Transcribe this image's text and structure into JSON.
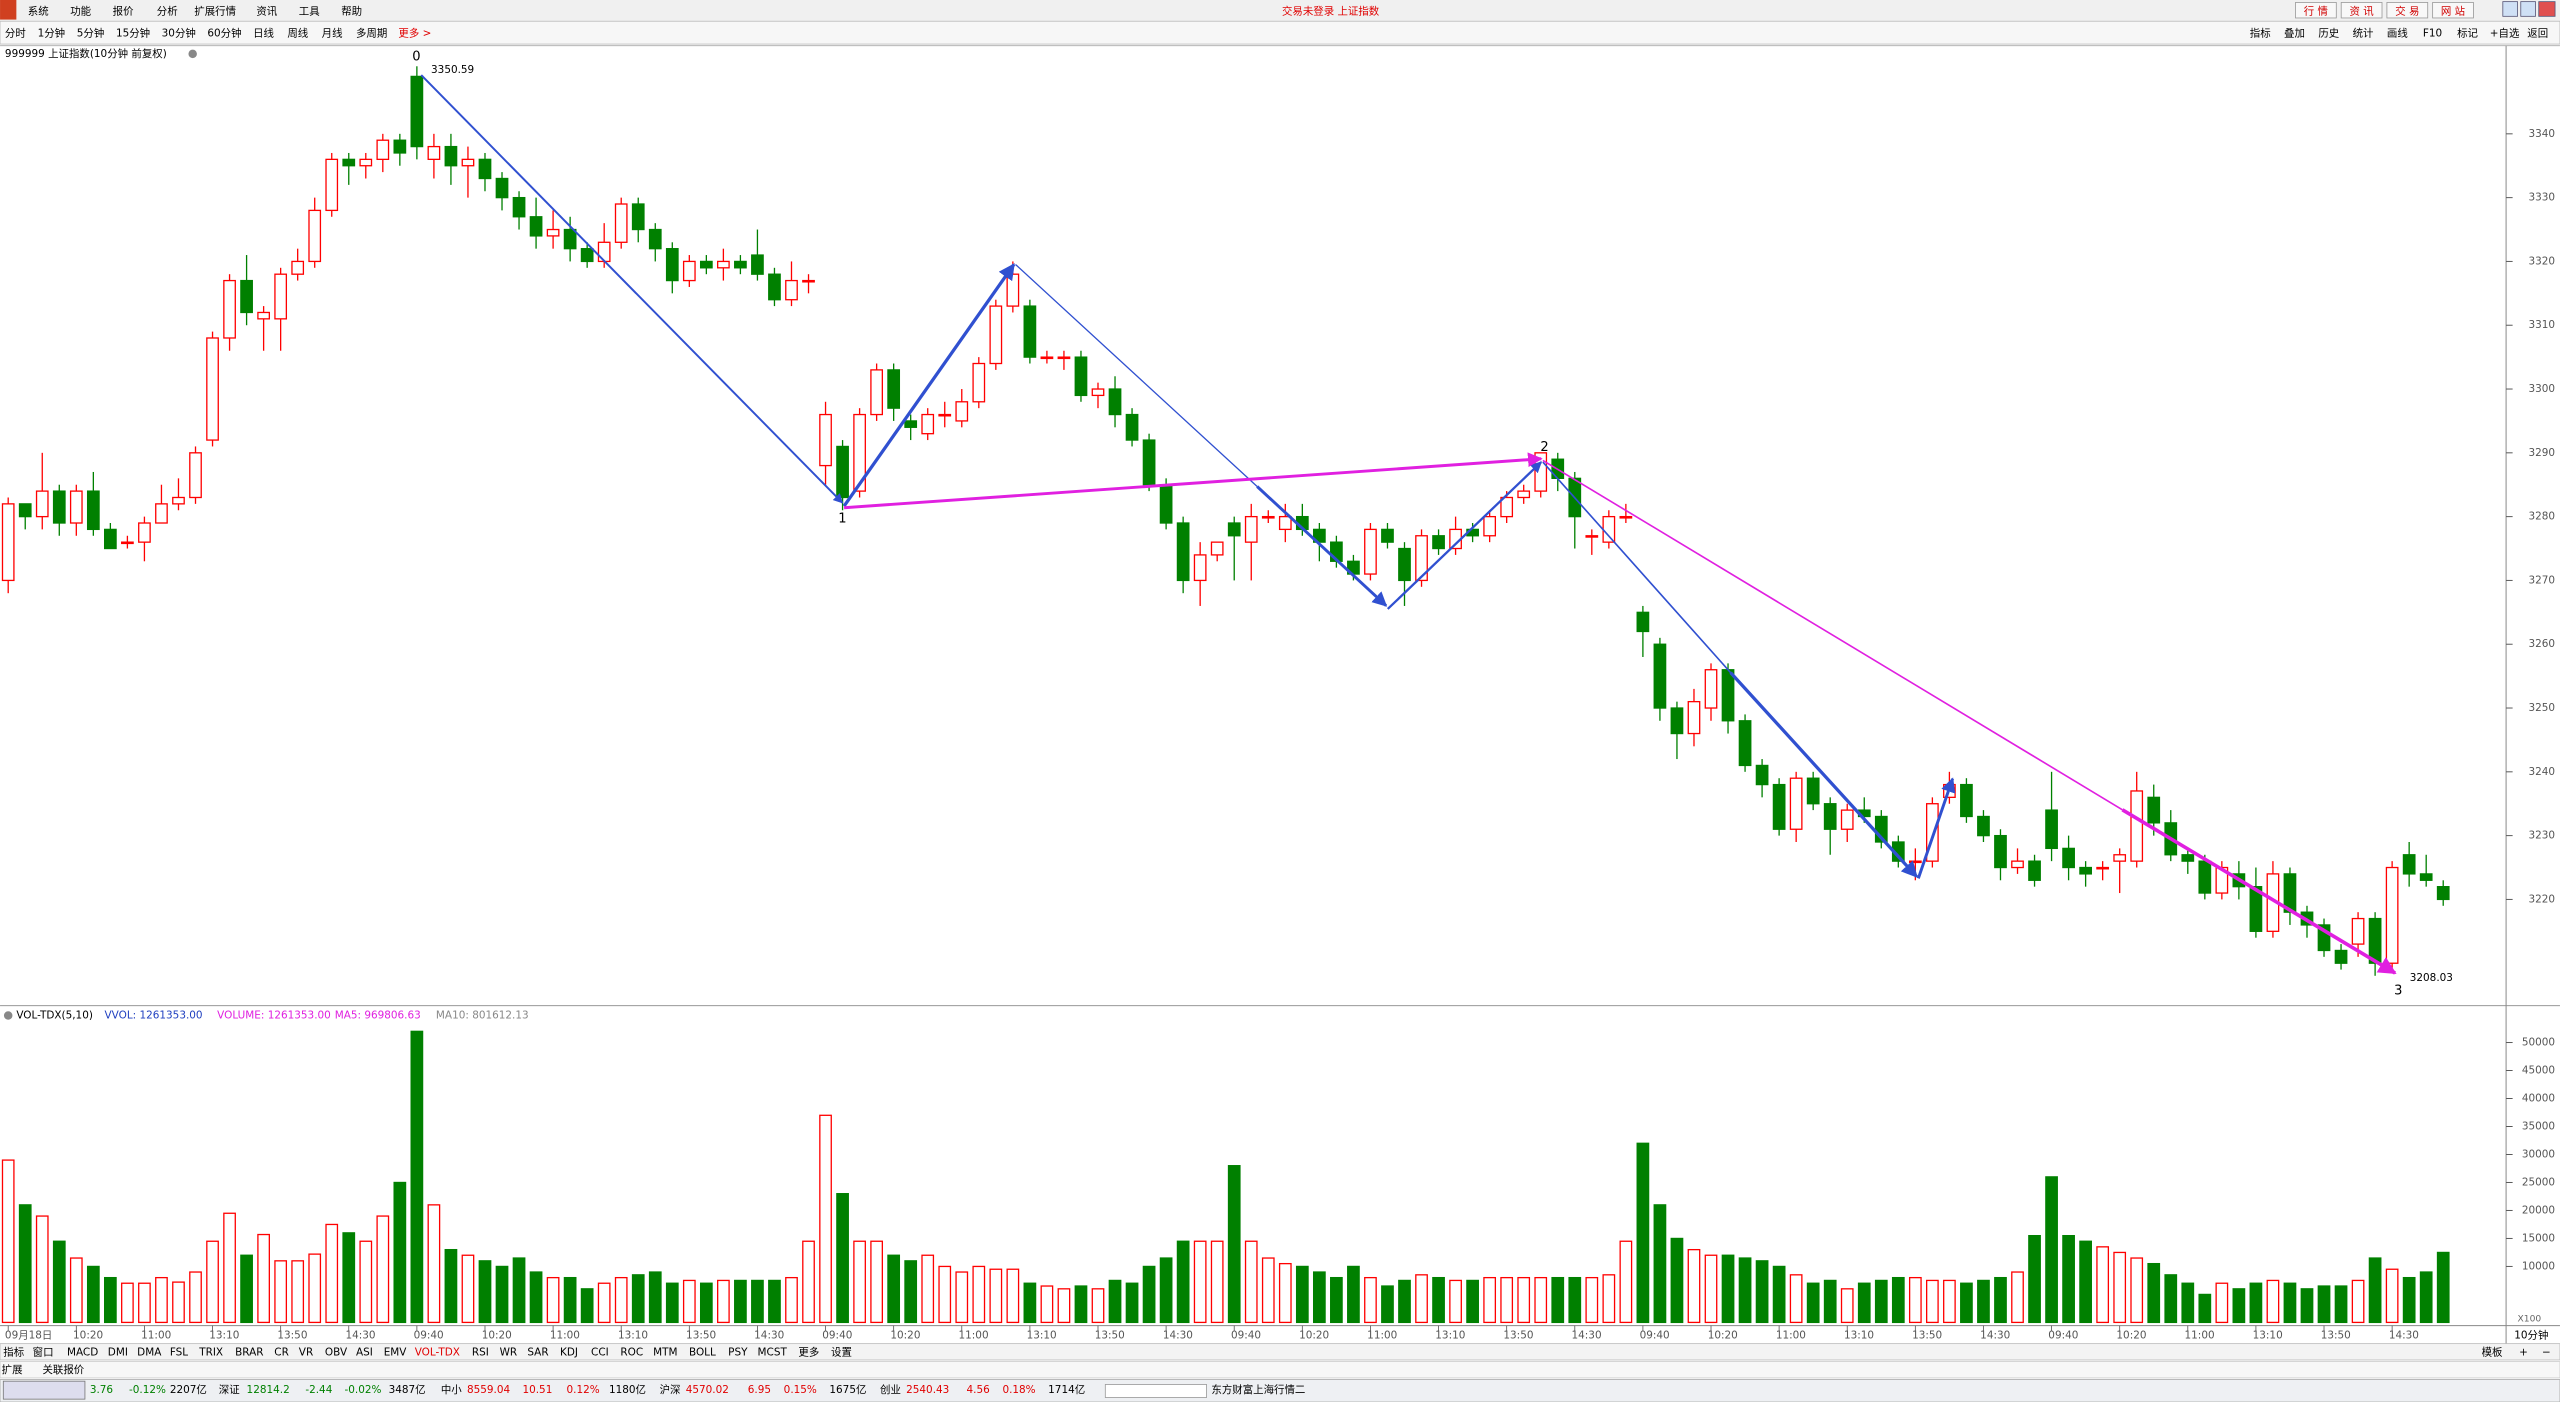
{
  "menu": [
    "系统",
    "功能",
    "报价",
    "分析",
    "扩展行情",
    "资讯",
    "工具",
    "帮助"
  ],
  "window_title": "交易未登录 上证指数",
  "top_buttons": [
    "行 情",
    "资 讯",
    "交 易",
    "网 站"
  ],
  "periods": [
    "分时",
    "1分钟",
    "5分钟",
    "15分钟",
    "30分钟",
    "60分钟",
    "日线",
    "周线",
    "月线",
    "多周期",
    "更多 >"
  ],
  "tools": [
    "指标",
    "叠加",
    "历史",
    "统计",
    "画线",
    "F10",
    "标记",
    "+自选",
    "返回"
  ],
  "chart_data": [
    {
      "type": "candlestick",
      "title": "999999 上证指数(10分钟 前复权)",
      "up_color": "#ff0000",
      "down_color": "#008000",
      "ylim": [
        3203.6,
        3353.3
      ],
      "yticks": [
        3220,
        3230,
        3240,
        3250,
        3260,
        3270,
        3280,
        3290,
        3300,
        3310,
        3320,
        3330,
        3340
      ],
      "annotations": [
        {
          "label": "0",
          "price_label": "3350.59"
        },
        {
          "label": "1"
        },
        {
          "label": "2"
        },
        {
          "label": "3",
          "price_label": "3208.03"
        }
      ],
      "candles": [
        [
          3270,
          3282,
          3283,
          3268
        ],
        [
          3282,
          3280,
          3282,
          3278
        ],
        [
          3280,
          3284,
          3290,
          3278
        ],
        [
          3284,
          3279,
          3285,
          3277
        ],
        [
          3279,
          3284,
          3285,
          3277
        ],
        [
          3284,
          3278,
          3287,
          3277
        ],
        [
          3278,
          3275,
          3279,
          3275
        ],
        [
          3276,
          3276,
          3277,
          3275
        ],
        [
          3276,
          3279,
          3280,
          3273
        ],
        [
          3279,
          3282,
          3285,
          3279
        ],
        [
          3282,
          3283,
          3286,
          3281
        ],
        [
          3283,
          3290,
          3291,
          3282
        ],
        [
          3292,
          3308,
          3309,
          3291
        ],
        [
          3308,
          3317,
          3318,
          3306
        ],
        [
          3317,
          3312,
          3321,
          3310
        ],
        [
          3311,
          3312,
          3313,
          3306
        ],
        [
          3311,
          3318,
          3319,
          3306
        ],
        [
          3318,
          3320,
          3322,
          3317
        ],
        [
          3320,
          3328,
          3330,
          3319
        ],
        [
          3328,
          3336,
          3337,
          3327
        ],
        [
          3336,
          3335,
          3337,
          3332
        ],
        [
          3335,
          3336,
          3337,
          3333
        ],
        [
          3336,
          3339,
          3340,
          3334
        ],
        [
          3339,
          3337,
          3340,
          3335
        ],
        [
          3349,
          3338,
          3350.59,
          3336
        ],
        [
          3336,
          3338,
          3340,
          3333
        ],
        [
          3338,
          3335,
          3340,
          3332
        ],
        [
          3335,
          3336,
          3338,
          3330
        ],
        [
          3336,
          3333,
          3337,
          3331
        ],
        [
          3333,
          3330,
          3334,
          3328
        ],
        [
          3330,
          3327,
          3331,
          3325
        ],
        [
          3327,
          3324,
          3330,
          3322
        ],
        [
          3324,
          3325,
          3328,
          3322
        ],
        [
          3325,
          3322,
          3327,
          3320
        ],
        [
          3322,
          3320,
          3323,
          3319
        ],
        [
          3320,
          3323,
          3326,
          3319
        ],
        [
          3323,
          3329,
          3330,
          3322
        ],
        [
          3329,
          3325,
          3330,
          3323
        ],
        [
          3325,
          3322,
          3326,
          3320
        ],
        [
          3322,
          3317,
          3323,
          3315
        ],
        [
          3317,
          3320,
          3321,
          3316
        ],
        [
          3320,
          3319,
          3321,
          3318
        ],
        [
          3319,
          3320,
          3322,
          3317
        ],
        [
          3320,
          3319,
          3321,
          3318
        ],
        [
          3321,
          3318,
          3325,
          3317
        ],
        [
          3318,
          3314,
          3319,
          3313
        ],
        [
          3314,
          3317,
          3320,
          3313
        ],
        [
          3317,
          3317,
          3318,
          3315
        ],
        [
          3288,
          3296,
          3298,
          3285
        ],
        [
          3291,
          3283,
          3292,
          3281
        ],
        [
          3284,
          3296,
          3297,
          3283
        ],
        [
          3296,
          3303,
          3304,
          3295
        ],
        [
          3303,
          3297,
          3304,
          3295
        ],
        [
          3295,
          3294,
          3296,
          3292
        ],
        [
          3293,
          3296,
          3297,
          3292
        ],
        [
          3296,
          3296,
          3298,
          3294
        ],
        [
          3295,
          3298,
          3300,
          3294
        ],
        [
          3298,
          3304,
          3305,
          3297
        ],
        [
          3304,
          3313,
          3314,
          3303
        ],
        [
          3313,
          3318,
          3320,
          3312
        ],
        [
          3313,
          3305,
          3314,
          3304
        ],
        [
          3305,
          3305,
          3306,
          3304
        ],
        [
          3305,
          3305,
          3306,
          3303
        ],
        [
          3305,
          3299,
          3306,
          3298
        ],
        [
          3299,
          3300,
          3301,
          3297
        ],
        [
          3300,
          3296,
          3302,
          3294
        ],
        [
          3296,
          3292,
          3297,
          3291
        ],
        [
          3292,
          3285,
          3293,
          3284
        ],
        [
          3285,
          3279,
          3286,
          3278
        ],
        [
          3279,
          3270,
          3280,
          3268
        ],
        [
          3270,
          3274,
          3276,
          3266
        ],
        [
          3274,
          3276,
          3276,
          3273
        ],
        [
          3279,
          3277,
          3280,
          3270
        ],
        [
          3276,
          3280,
          3282,
          3270
        ],
        [
          3280,
          3280,
          3281,
          3279
        ],
        [
          3278,
          3280,
          3282,
          3276
        ],
        [
          3280,
          3278,
          3282,
          3277
        ],
        [
          3278,
          3276,
          3279,
          3273
        ],
        [
          3276,
          3273,
          3277,
          3272
        ],
        [
          3273,
          3271,
          3274,
          3270
        ],
        [
          3271,
          3278,
          3279,
          3270
        ],
        [
          3278,
          3276,
          3279,
          3275
        ],
        [
          3275,
          3270,
          3276,
          3266
        ],
        [
          3270,
          3277,
          3278,
          3269
        ],
        [
          3277,
          3275,
          3278,
          3274
        ],
        [
          3275,
          3278,
          3280,
          3274
        ],
        [
          3278,
          3277,
          3279,
          3276
        ],
        [
          3277,
          3280,
          3281,
          3276
        ],
        [
          3280,
          3283,
          3284,
          3279
        ],
        [
          3283,
          3284,
          3285,
          3282
        ],
        [
          3284,
          3290,
          3290,
          3283
        ],
        [
          3289,
          3286,
          3290,
          3284
        ],
        [
          3286,
          3280,
          3287,
          3275
        ],
        [
          3277,
          3277,
          3278,
          3274
        ],
        [
          3276,
          3280,
          3281,
          3275
        ],
        [
          3280,
          3280,
          3282,
          3279
        ],
        [
          3265,
          3262,
          3266,
          3258
        ],
        [
          3260,
          3250,
          3261,
          3248
        ],
        [
          3250,
          3246,
          3251,
          3242
        ],
        [
          3246,
          3251,
          3253,
          3244
        ],
        [
          3250,
          3256,
          3257,
          3248
        ],
        [
          3256,
          3248,
          3257,
          3246
        ],
        [
          3248,
          3241,
          3249,
          3240
        ],
        [
          3241,
          3238,
          3242,
          3236
        ],
        [
          3238,
          3231,
          3239,
          3230
        ],
        [
          3231,
          3239,
          3240,
          3229
        ],
        [
          3239,
          3235,
          3240,
          3234
        ],
        [
          3235,
          3231,
          3236,
          3227
        ],
        [
          3231,
          3234,
          3235,
          3229
        ],
        [
          3234,
          3233,
          3236,
          3232
        ],
        [
          3233,
          3229,
          3234,
          3228
        ],
        [
          3229,
          3226,
          3230,
          3225
        ],
        [
          3226,
          3226,
          3228,
          3223
        ],
        [
          3226,
          3235,
          3236,
          3225
        ],
        [
          3236,
          3238,
          3240,
          3235
        ],
        [
          3238,
          3233,
          3239,
          3232
        ],
        [
          3233,
          3230,
          3234,
          3229
        ],
        [
          3230,
          3225,
          3231,
          3223
        ],
        [
          3225,
          3226,
          3228,
          3224
        ],
        [
          3226,
          3223,
          3227,
          3222
        ],
        [
          3234,
          3228,
          3240,
          3226
        ],
        [
          3228,
          3225,
          3230,
          3223
        ],
        [
          3225,
          3224,
          3226,
          3222
        ],
        [
          3225,
          3225,
          3226,
          3223
        ],
        [
          3226,
          3227,
          3228,
          3221
        ],
        [
          3226,
          3237,
          3240,
          3225
        ],
        [
          3236,
          3232,
          3238,
          3230
        ],
        [
          3232,
          3227,
          3234,
          3226
        ],
        [
          3227,
          3226,
          3228,
          3224
        ],
        [
          3226,
          3221,
          3227,
          3220
        ],
        [
          3221,
          3225,
          3226,
          3220
        ],
        [
          3224,
          3222,
          3226,
          3220
        ],
        [
          3222,
          3215,
          3225,
          3214
        ],
        [
          3215,
          3224,
          3226,
          3214
        ],
        [
          3224,
          3218,
          3225,
          3216
        ],
        [
          3218,
          3216,
          3219,
          3214
        ],
        [
          3216,
          3212,
          3217,
          3211
        ],
        [
          3212,
          3210,
          3213,
          3209
        ],
        [
          3213,
          3217,
          3218,
          3211
        ],
        [
          3217,
          3210,
          3218,
          3208.03
        ],
        [
          3210,
          3225,
          3226,
          3209
        ],
        [
          3227,
          3224,
          3229,
          3222
        ],
        [
          3224,
          3223,
          3227,
          3222
        ],
        [
          3222,
          3220,
          3223,
          3219
        ]
      ]
    },
    {
      "type": "bar",
      "title_parts": [
        "VOL-TDX(5,10)",
        "VVOL: 1261353.00",
        "VOLUME: 1261353.00",
        "MA5: 969806.63",
        "MA10: 801612.13"
      ],
      "ylim": [
        0,
        52500
      ],
      "yticks": [
        10000,
        15000,
        20000,
        25000,
        30000,
        35000,
        40000,
        45000,
        50000
      ],
      "unit_label": "X100",
      "period_label": "10分钟",
      "x_labels": [
        "09月18日",
        "10:20",
        "11:00",
        "13:10",
        "13:50",
        "14:30",
        "09:40",
        "10:20",
        "11:00",
        "13:10",
        "13:50",
        "14:30",
        "09:40",
        "10:20",
        "11:00",
        "13:10",
        "13:50",
        "14:30",
        "09:40",
        "10:20",
        "11:00",
        "13:10",
        "13:50",
        "14:30",
        "09:40",
        "10:20",
        "11:00",
        "13:10",
        "13:50",
        "14:30",
        "09:40",
        "10:20",
        "11:00",
        "13:10",
        "13:50",
        "14:30"
      ],
      "values": [
        29000,
        21000,
        19000,
        14500,
        11500,
        10000,
        8000,
        7000,
        7000,
        8000,
        7200,
        9000,
        14500,
        19500,
        12000,
        15700,
        11000,
        11000,
        12200,
        17500,
        16000,
        14500,
        19000,
        25000,
        52000,
        21000,
        13000,
        12000,
        11000,
        10000,
        11500,
        9000,
        8000,
        8000,
        6000,
        7000,
        8000,
        8500,
        9000,
        7000,
        7500,
        7000,
        7500,
        7500,
        7500,
        7500,
        8000,
        14500,
        37000,
        23000,
        14500,
        14500,
        12000,
        11000,
        12000,
        10000,
        9000,
        10000,
        9500,
        9500,
        7000,
        6500,
        6000,
        6500,
        6000,
        7500,
        7000,
        10000,
        11500,
        14500,
        14500,
        14500,
        28000,
        14500,
        11500,
        10500,
        10000,
        9000,
        8000,
        10000,
        8000,
        6500,
        7500,
        8500,
        8000,
        7500,
        7500,
        8000,
        8000,
        8000,
        8000,
        8000,
        8000,
        8000,
        8500,
        14500,
        32000,
        21000,
        15000,
        13000,
        12000,
        12000,
        11500,
        11000,
        10000,
        8500,
        7000,
        7500,
        6000,
        7000,
        7500,
        8000,
        8000,
        7500,
        7500,
        7000,
        7500,
        8000,
        9000,
        15500,
        26000,
        15500,
        14500,
        13500,
        12500,
        11500,
        10500,
        8500,
        7000,
        5000,
        7000,
        6000,
        7000,
        7500,
        7000,
        6000,
        6500,
        6500,
        7500,
        11500,
        9500,
        8000,
        9000,
        12500
      ]
    }
  ],
  "indicator_tabs": [
    "指标",
    "窗口",
    "MACD",
    "DMI",
    "DMA",
    "FSL",
    "TRIX",
    "BRAR",
    "CR",
    "VR",
    "OBV",
    "ASI",
    "EMV",
    "VOL-TDX",
    "RSI",
    "WR",
    "SAR",
    "KDJ",
    "CCI",
    "ROC",
    "MTM",
    "BOLL",
    "PSY",
    "MCST",
    "更多",
    "设置"
  ],
  "active_tab": 13,
  "right_tabs": [
    "模板",
    "+",
    "−"
  ],
  "extra_tabs": [
    "扩展",
    "关联报价"
  ],
  "status": [
    {
      "value": "3.76",
      "pct": "-0.12%",
      "amount": "2207亿"
    },
    {
      "name": "深证",
      "value": "12814.2",
      "change": "-2.44",
      "pct": "-0.02%",
      "amount": "3487亿"
    },
    {
      "name": "中小",
      "value": "8559.04",
      "change": "10.51",
      "pct": "0.12%",
      "amount": "1180亿"
    },
    {
      "name": "沪深",
      "value": "4570.02",
      "change": "6.95",
      "pct": "0.15%",
      "amount": "1675亿"
    },
    {
      "name": "创业",
      "value": "2540.43",
      "change": "4.56",
      "pct": "0.18%",
      "amount": "1714亿"
    }
  ],
  "status_source": "东方财富上海行情二"
}
